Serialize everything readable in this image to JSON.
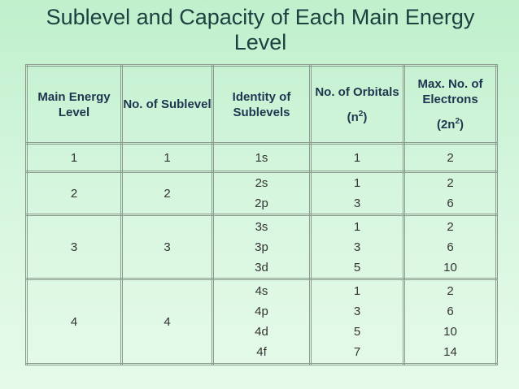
{
  "title": "Sublevel and Capacity of Each Main Energy Level",
  "table": {
    "header": [
      {
        "text": "Main Energy Level"
      },
      {
        "text": "No. of Sublevel"
      },
      {
        "text": "Identity of Sublevels"
      },
      {
        "text": "No. of Orbitals",
        "formula": {
          "base": "(n",
          "sup": "2",
          "end": ")"
        }
      },
      {
        "text": "Max. No. of Electrons",
        "formula": {
          "base": "(2n",
          "sup": "2",
          "end": ")"
        }
      }
    ],
    "rows": [
      {
        "level": 1,
        "sublevels": 1,
        "identity": [
          "1s"
        ],
        "orbitals": [
          1
        ],
        "electrons": [
          2
        ]
      },
      {
        "level": 2,
        "sublevels": 2,
        "identity": [
          "2s",
          "2p"
        ],
        "orbitals": [
          1,
          3
        ],
        "electrons": [
          2,
          6
        ]
      },
      {
        "level": 3,
        "sublevels": 3,
        "identity": [
          "3s",
          "3p",
          "3d"
        ],
        "orbitals": [
          1,
          3,
          5
        ],
        "electrons": [
          2,
          6,
          10
        ]
      },
      {
        "level": 4,
        "sublevels": 4,
        "identity": [
          "4s",
          "4p",
          "4d",
          "4f"
        ],
        "orbitals": [
          1,
          3,
          5,
          7
        ],
        "electrons": [
          2,
          6,
          10,
          14
        ]
      }
    ]
  }
}
